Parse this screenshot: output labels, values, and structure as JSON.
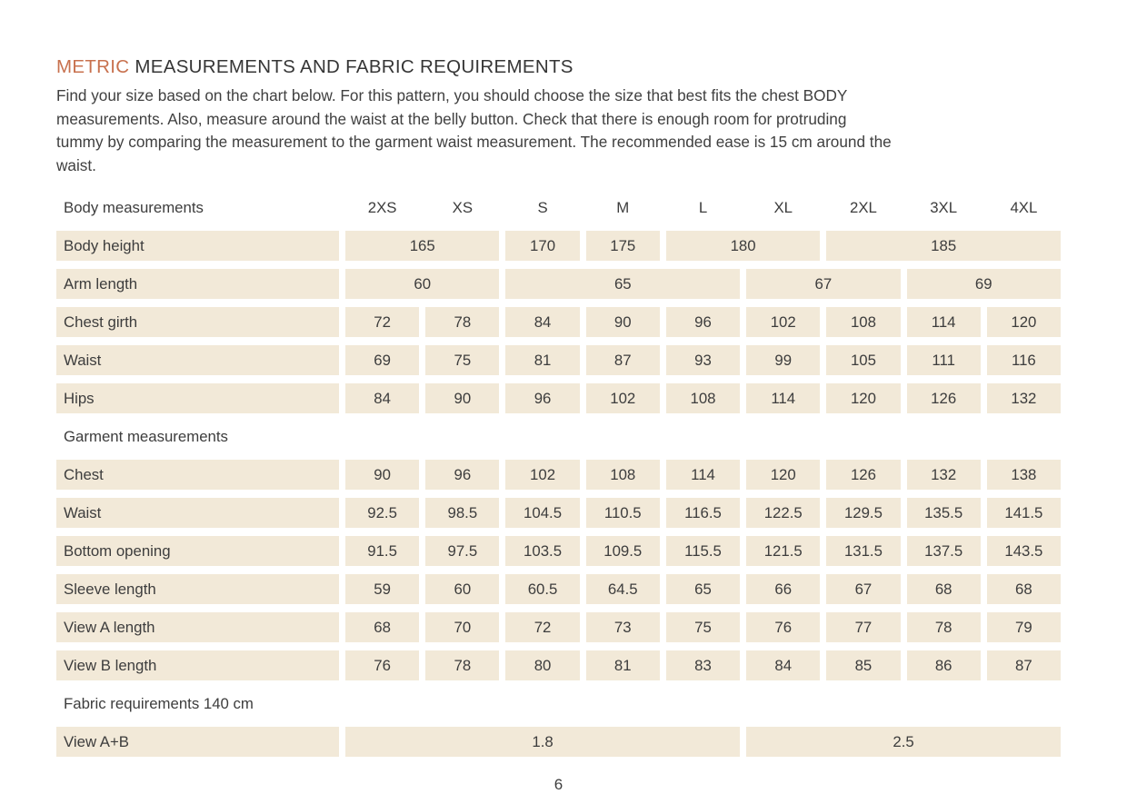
{
  "colors": {
    "accent": "#c8714e",
    "cell_bg": "#f2e9d8",
    "text": "#3d3d3d"
  },
  "page": {
    "title_highlight": "METRIC",
    "title_rest": " MEASUREMENTS AND FABRIC REQUIREMENTS",
    "intro_lines": [
      "Find your size based on the chart below. For this pattern, you should choose the size that best fits the chest BODY",
      "measurements. Also, measure around the waist at the belly button. Check that there is enough room for protruding",
      "tummy by comparing the measurement to the garment waist measurement. The recommended ease is 15 cm around the",
      "waist."
    ],
    "page_number": "6"
  },
  "table": {
    "header_label": "Body measurements",
    "sizes": [
      "2XS",
      "XS",
      "S",
      "M",
      "L",
      "XL",
      "2XL",
      "3XL",
      "4XL"
    ],
    "sections": [
      {
        "title": "",
        "rows": [
          {
            "label": "Body height",
            "cells": [
              {
                "value": "165",
                "span": 2
              },
              {
                "value": "170",
                "span": 1
              },
              {
                "value": "175",
                "span": 1
              },
              {
                "value": "180",
                "span": 2
              },
              {
                "value": "185",
                "span": 3
              }
            ]
          },
          {
            "label": "Arm length",
            "cells": [
              {
                "value": "60",
                "span": 2
              },
              {
                "value": "65",
                "span": 3
              },
              {
                "value": "67",
                "span": 2
              },
              {
                "value": "69",
                "span": 2
              }
            ]
          },
          {
            "label": "Chest girth",
            "cells": [
              {
                "value": "72",
                "span": 1
              },
              {
                "value": "78",
                "span": 1
              },
              {
                "value": "84",
                "span": 1
              },
              {
                "value": "90",
                "span": 1
              },
              {
                "value": "96",
                "span": 1
              },
              {
                "value": "102",
                "span": 1
              },
              {
                "value": "108",
                "span": 1
              },
              {
                "value": "114",
                "span": 1
              },
              {
                "value": "120",
                "span": 1
              }
            ]
          },
          {
            "label": "Waist",
            "cells": [
              {
                "value": "69",
                "span": 1
              },
              {
                "value": "75",
                "span": 1
              },
              {
                "value": "81",
                "span": 1
              },
              {
                "value": "87",
                "span": 1
              },
              {
                "value": "93",
                "span": 1
              },
              {
                "value": "99",
                "span": 1
              },
              {
                "value": "105",
                "span": 1
              },
              {
                "value": "111",
                "span": 1
              },
              {
                "value": "116",
                "span": 1
              }
            ]
          },
          {
            "label": "Hips",
            "cells": [
              {
                "value": "84",
                "span": 1
              },
              {
                "value": "90",
                "span": 1
              },
              {
                "value": "96",
                "span": 1
              },
              {
                "value": "102",
                "span": 1
              },
              {
                "value": "108",
                "span": 1
              },
              {
                "value": "114",
                "span": 1
              },
              {
                "value": "120",
                "span": 1
              },
              {
                "value": "126",
                "span": 1
              },
              {
                "value": "132",
                "span": 1
              }
            ]
          }
        ]
      },
      {
        "title": "Garment measurements",
        "rows": [
          {
            "label": "Chest",
            "cells": [
              {
                "value": "90",
                "span": 1
              },
              {
                "value": "96",
                "span": 1
              },
              {
                "value": "102",
                "span": 1
              },
              {
                "value": "108",
                "span": 1
              },
              {
                "value": "114",
                "span": 1
              },
              {
                "value": "120",
                "span": 1
              },
              {
                "value": "126",
                "span": 1
              },
              {
                "value": "132",
                "span": 1
              },
              {
                "value": "138",
                "span": 1
              }
            ]
          },
          {
            "label": "Waist",
            "cells": [
              {
                "value": "92.5",
                "span": 1
              },
              {
                "value": "98.5",
                "span": 1
              },
              {
                "value": "104.5",
                "span": 1
              },
              {
                "value": "110.5",
                "span": 1
              },
              {
                "value": "116.5",
                "span": 1
              },
              {
                "value": "122.5",
                "span": 1
              },
              {
                "value": "129.5",
                "span": 1
              },
              {
                "value": "135.5",
                "span": 1
              },
              {
                "value": "141.5",
                "span": 1
              }
            ]
          },
          {
            "label": "Bottom opening",
            "cells": [
              {
                "value": "91.5",
                "span": 1
              },
              {
                "value": "97.5",
                "span": 1
              },
              {
                "value": "103.5",
                "span": 1
              },
              {
                "value": "109.5",
                "span": 1
              },
              {
                "value": "115.5",
                "span": 1
              },
              {
                "value": "121.5",
                "span": 1
              },
              {
                "value": "131.5",
                "span": 1
              },
              {
                "value": "137.5",
                "span": 1
              },
              {
                "value": "143.5",
                "span": 1
              }
            ]
          },
          {
            "label": "Sleeve length",
            "cells": [
              {
                "value": "59",
                "span": 1
              },
              {
                "value": "60",
                "span": 1
              },
              {
                "value": "60.5",
                "span": 1
              },
              {
                "value": "64.5",
                "span": 1
              },
              {
                "value": "65",
                "span": 1
              },
              {
                "value": "66",
                "span": 1
              },
              {
                "value": "67",
                "span": 1
              },
              {
                "value": "68",
                "span": 1
              },
              {
                "value": "68",
                "span": 1
              }
            ]
          },
          {
            "label": "View A length",
            "cells": [
              {
                "value": "68",
                "span": 1
              },
              {
                "value": "70",
                "span": 1
              },
              {
                "value": "72",
                "span": 1
              },
              {
                "value": "73",
                "span": 1
              },
              {
                "value": "75",
                "span": 1
              },
              {
                "value": "76",
                "span": 1
              },
              {
                "value": "77",
                "span": 1
              },
              {
                "value": "78",
                "span": 1
              },
              {
                "value": "79",
                "span": 1
              }
            ]
          },
          {
            "label": "View B length",
            "cells": [
              {
                "value": "76",
                "span": 1
              },
              {
                "value": "78",
                "span": 1
              },
              {
                "value": "80",
                "span": 1
              },
              {
                "value": "81",
                "span": 1
              },
              {
                "value": "83",
                "span": 1
              },
              {
                "value": "84",
                "span": 1
              },
              {
                "value": "85",
                "span": 1
              },
              {
                "value": "86",
                "span": 1
              },
              {
                "value": "87",
                "span": 1
              }
            ]
          }
        ]
      },
      {
        "title": "Fabric requirements 140 cm",
        "rows": [
          {
            "label": "View A+B",
            "cells": [
              {
                "value": "1.8",
                "span": 5
              },
              {
                "value": "2.5",
                "span": 4
              }
            ]
          }
        ]
      }
    ]
  }
}
